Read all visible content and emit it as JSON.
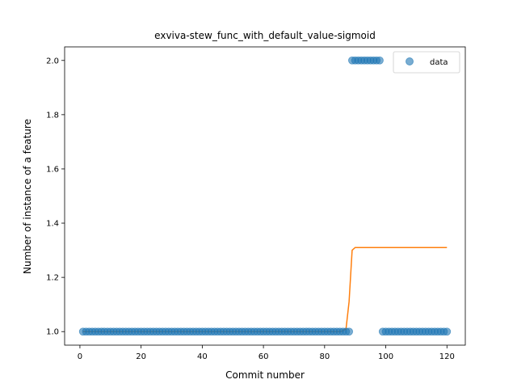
{
  "chart_data": {
    "type": "scatter",
    "title": "exviva-stew_func_with_default_value-sigmoid",
    "xlabel": "Commit number",
    "ylabel": "Number of instance of a feature",
    "xlim": [
      -5,
      126
    ],
    "ylim": [
      0.95,
      2.05
    ],
    "xticks": [
      0,
      20,
      40,
      60,
      80,
      100,
      120
    ],
    "yticks": [
      1.0,
      1.2,
      1.4,
      1.6,
      1.8,
      2.0
    ],
    "xtick_labels": [
      "0",
      "20",
      "40",
      "60",
      "80",
      "100",
      "120"
    ],
    "ytick_labels": [
      "1.0",
      "1.2",
      "1.4",
      "1.6",
      "1.8",
      "2.0"
    ],
    "grid": false,
    "legend": {
      "position": "top-right",
      "entries": [
        "data"
      ]
    },
    "series": [
      {
        "name": "data",
        "kind": "scatter",
        "color": "#1f77b4",
        "segments": [
          {
            "x_start": 1,
            "x_end": 88,
            "y": 1.0
          },
          {
            "x_start": 89,
            "x_end": 98,
            "y": 2.0
          },
          {
            "x_start": 99,
            "x_end": 120,
            "y": 1.0
          }
        ]
      },
      {
        "kind": "line",
        "color": "#ff7f0e",
        "points": [
          [
            1,
            1.0
          ],
          [
            85,
            1.0
          ],
          [
            86,
            1.003
          ],
          [
            87,
            1.01
          ],
          [
            88,
            1.11
          ],
          [
            89,
            1.3
          ],
          [
            90,
            1.31
          ],
          [
            120,
            1.31
          ]
        ]
      }
    ]
  }
}
